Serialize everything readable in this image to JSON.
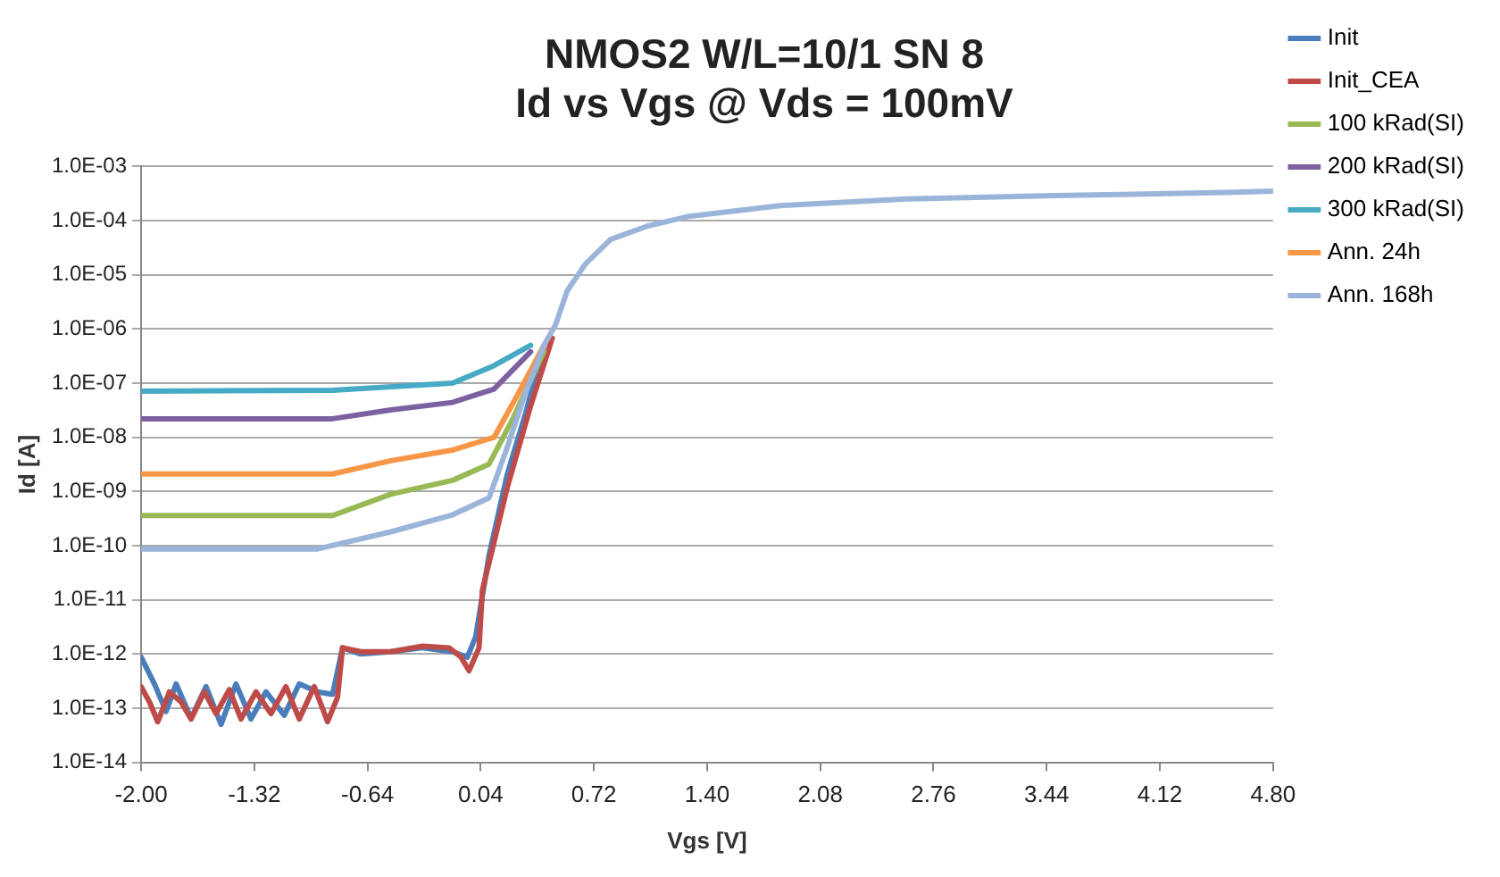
{
  "chart_data": {
    "type": "line",
    "title": [
      "NMOS2 W/L=10/1 SN 8",
      "Id vs Vgs @ Vds = 100mV"
    ],
    "xlabel": "Vgs [V]",
    "ylabel": "Id [A]",
    "log": "y",
    "grid": "y",
    "legend": "right",
    "marker": "none",
    "line_style": "solid",
    "xlim": [
      -2,
      4.8
    ],
    "xticks": [
      {
        "value": -2,
        "label": "-2.00"
      },
      {
        "value": -1.32,
        "label": "-1.32"
      },
      {
        "value": -0.64,
        "label": "-0.64"
      },
      {
        "value": 0.04,
        "label": "0.04"
      },
      {
        "value": 0.72,
        "label": "0.72"
      },
      {
        "value": 1.4,
        "label": "1.40"
      },
      {
        "value": 2.08,
        "label": "2.08"
      },
      {
        "value": 2.76,
        "label": "2.76"
      },
      {
        "value": 3.44,
        "label": "3.44"
      },
      {
        "value": 4.12,
        "label": "4.12"
      },
      {
        "value": 4.8,
        "label": "4.80"
      }
    ],
    "ylim": [
      1e-14,
      0.001
    ],
    "yticks": [
      {
        "value": 1e-14,
        "label": "1.0E-14"
      },
      {
        "value": 1e-13,
        "label": "1.0E-13"
      },
      {
        "value": 1e-12,
        "label": "1.0E-12"
      },
      {
        "value": 1e-11,
        "label": "1.0E-11"
      },
      {
        "value": 1e-10,
        "label": "1.0E-10"
      },
      {
        "value": 1e-09,
        "label": "1.0E-09"
      },
      {
        "value": 1e-08,
        "label": "1.0E-08"
      },
      {
        "value": 1e-07,
        "label": "1.0E-07"
      },
      {
        "value": 1e-06,
        "label": "1.0E-06"
      },
      {
        "value": 1e-05,
        "label": "1.0E-05"
      },
      {
        "value": 0.0001,
        "label": "1.0E-04"
      },
      {
        "value": 0.001,
        "label": "1.0E-03"
      }
    ],
    "series": [
      {
        "name": "Init",
        "color": "#4a7ebb",
        "x": [
          -2.0,
          -1.92,
          -1.85,
          -1.79,
          -1.7,
          -1.61,
          -1.52,
          -1.43,
          -1.34,
          -1.25,
          -1.14,
          -1.05,
          -0.94,
          -0.85,
          -0.79,
          -0.68,
          -0.5,
          -0.31,
          -0.13,
          -0.04,
          0.01,
          0.09,
          0.2,
          0.31,
          0.42
        ],
        "values": [
          8.7e-13,
          2.8e-13,
          8.7e-14,
          2.8e-13,
          6.5e-14,
          2.5e-13,
          5e-14,
          2.8e-13,
          6.3e-14,
          2e-13,
          7.4e-14,
          2.8e-13,
          2e-13,
          1.8e-13,
          1.3e-12,
          1e-12,
          1.1e-12,
          1.3e-12,
          1.1e-12,
          8.7e-13,
          2.1e-12,
          6.6e-11,
          2.1e-09,
          2.8e-08,
          5e-07
        ]
      },
      {
        "name": "Init_CEA",
        "color": "#be4b48",
        "x": [
          -2.0,
          -1.95,
          -1.9,
          -1.83,
          -1.76,
          -1.7,
          -1.62,
          -1.55,
          -1.47,
          -1.4,
          -1.31,
          -1.22,
          -1.13,
          -1.05,
          -0.96,
          -0.88,
          -0.82,
          -0.79,
          -0.68,
          -0.5,
          -0.31,
          -0.15,
          -0.08,
          -0.03,
          0.03,
          0.05,
          0.2,
          0.34,
          0.47
        ],
        "values": [
          2.5e-13,
          1.3e-13,
          5.6e-14,
          2e-13,
          1.3e-13,
          6.3e-14,
          2e-13,
          7.9e-14,
          2.2e-13,
          6.3e-14,
          2e-13,
          7.9e-14,
          2.5e-13,
          6.3e-14,
          2.5e-13,
          5.6e-14,
          1.6e-13,
          1.3e-12,
          1.1e-12,
          1.1e-12,
          1.4e-12,
          1.3e-12,
          8.9e-13,
          4.9e-13,
          1.3e-12,
          1.5e-11,
          1.2e-09,
          3.8e-08,
          6.8e-07
        ]
      },
      {
        "name": "100 kRad(SI)",
        "color": "#98b954",
        "x": [
          -2.0,
          -0.85,
          -0.5,
          -0.13,
          0.09,
          0.23,
          0.42
        ],
        "values": [
          3.6e-10,
          3.6e-10,
          8.9e-10,
          1.6e-09,
          3.2e-09,
          2.1e-08,
          3.8e-07
        ]
      },
      {
        "name": "200 kRad(SI)",
        "color": "#7d60a0",
        "x": [
          -2.0,
          -0.85,
          -0.5,
          -0.13,
          0.12,
          0.34
        ],
        "values": [
          2.2e-08,
          2.2e-08,
          3.2e-08,
          4.4e-08,
          7.8e-08,
          3.8e-07
        ]
      },
      {
        "name": "300 kRad(SI)",
        "color": "#46aac5",
        "x": [
          -2.0,
          -0.85,
          -0.13,
          0.12,
          0.34
        ],
        "values": [
          7.1e-08,
          7.4e-08,
          1e-07,
          2.1e-07,
          5e-07
        ]
      },
      {
        "name": "Ann. 24h",
        "color": "#f79646",
        "x": [
          -2.0,
          -0.85,
          -0.5,
          -0.13,
          0.12,
          0.27,
          0.42
        ],
        "values": [
          2.1e-09,
          2.1e-09,
          3.7e-09,
          5.8e-09,
          1e-08,
          6.8e-08,
          5e-07
        ]
      },
      {
        "name": "Ann. 168h",
        "color": "#9bb4d9",
        "x": [
          -2.0,
          -0.94,
          -0.5,
          -0.13,
          0.09,
          0.2,
          0.31,
          0.42,
          0.49,
          0.56,
          0.67,
          0.82,
          1.04,
          1.29,
          1.84,
          2.57,
          3.49,
          4.51,
          4.8
        ],
        "values": [
          8.7e-11,
          8.7e-11,
          1.8e-10,
          3.7e-10,
          7.6e-10,
          6.6e-09,
          6.8e-08,
          5e-07,
          1.2e-06,
          5.1e-06,
          1.6e-05,
          4.5e-05,
          7.9e-05,
          0.00012,
          0.00019,
          0.00025,
          0.00029,
          0.00033,
          0.00035
        ]
      }
    ]
  }
}
